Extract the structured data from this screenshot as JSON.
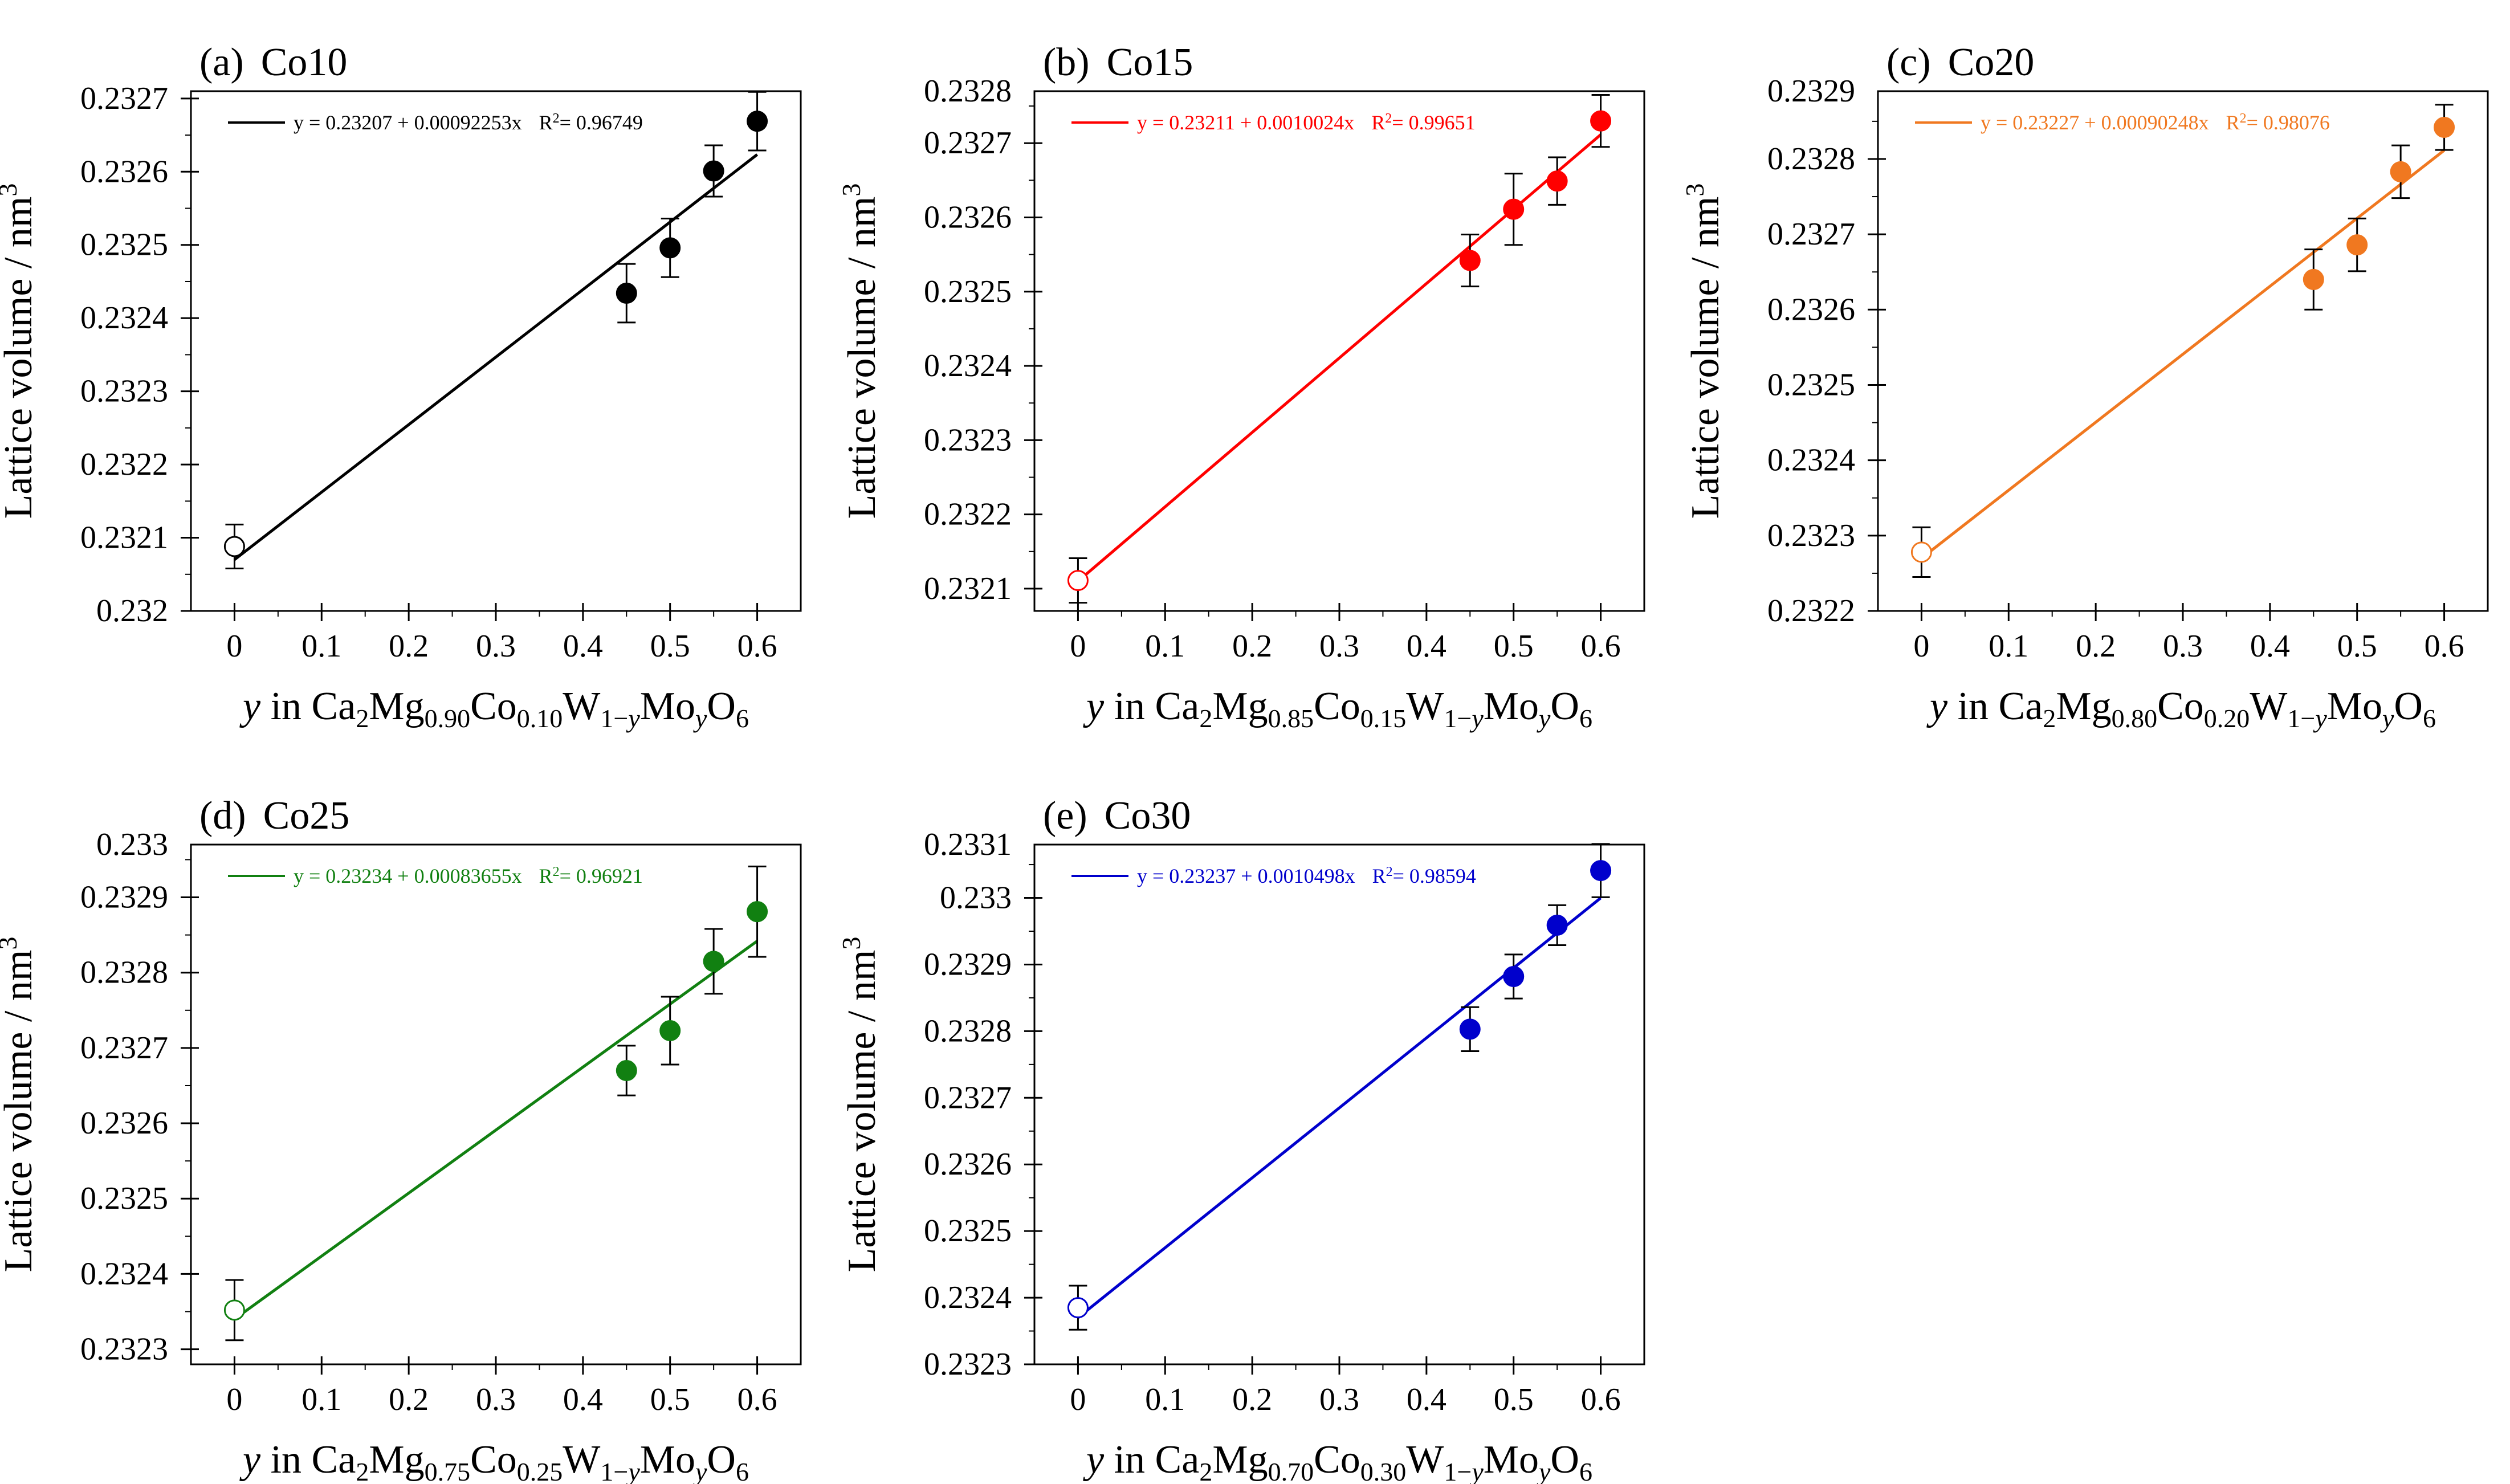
{
  "figure": {
    "ylabel": "Lattice volume / nm",
    "ylabel_superscript": "3",
    "xlabel_prefix": "y in Ca",
    "xtick_labels": [
      "0",
      "0.1",
      "0.2",
      "0.3",
      "0.4",
      "0.5",
      "0.6"
    ]
  },
  "chart_data": [
    {
      "type": "scatter",
      "panel_label": "(a)",
      "title": "Co10",
      "color": "#000000",
      "fit": {
        "intercept": 0.23207,
        "slope": 0.00092253,
        "equation": "y = 0.23207 + 0.00092253x",
        "r2_label": "R",
        "r2_value": "= 0.96749"
      },
      "x": [
        0,
        0.45,
        0.5,
        0.55,
        0.6
      ],
      "y": [
        0.232088,
        0.232434,
        0.232496,
        0.232601,
        0.232669
      ],
      "yerr": [
        3e-05,
        4e-05,
        4e-05,
        3.5e-05,
        4e-05
      ],
      "open_marker_index": 0,
      "xlim": [
        -0.05,
        0.65
      ],
      "ylim": [
        0.232,
        0.23271
      ],
      "ytick_values": [
        0.232,
        0.2321,
        0.2322,
        0.2323,
        0.2324,
        0.2325,
        0.2326,
        0.2327
      ],
      "ytick_labels": [
        "0.232",
        "0.2321",
        "0.2322",
        "0.2323",
        "0.2324",
        "0.2325",
        "0.2326",
        "0.2327"
      ],
      "xlabel": {
        "mg": "0.90",
        "co": "0.10"
      }
    },
    {
      "type": "scatter",
      "panel_label": "(b)",
      "title": "Co15",
      "color": "#ff0000",
      "fit": {
        "intercept": 0.23211,
        "slope": 0.0010024,
        "equation": "y = 0.23211 + 0.0010024x",
        "r2_label": "R",
        "r2_value": "= 0.99651"
      },
      "x": [
        0,
        0.45,
        0.5,
        0.55,
        0.6
      ],
      "y": [
        0.232111,
        0.232542,
        0.232611,
        0.232649,
        0.23273
      ],
      "yerr": [
        3e-05,
        3.5e-05,
        4.8e-05,
        3.2e-05,
        3.5e-05
      ],
      "open_marker_index": 0,
      "xlim": [
        -0.05,
        0.65
      ],
      "ylim": [
        0.23207,
        0.23277
      ],
      "ytick_values": [
        0.2321,
        0.2322,
        0.2323,
        0.2324,
        0.2325,
        0.2326,
        0.2327
      ],
      "ytick_labels": [
        "0.2321",
        "0.2322",
        "0.2323",
        "0.2324",
        "0.2325",
        "0.2326",
        "0.2327"
      ],
      "extra_ytick_label": {
        "value": 0.2328,
        "label": "0.2328"
      },
      "xlabel": {
        "mg": "0.85",
        "co": "0.15"
      }
    },
    {
      "type": "scatter",
      "panel_label": "(c)",
      "title": "Co20",
      "color": "#f07820",
      "fit": {
        "intercept": 0.23227,
        "slope": 0.00090248,
        "equation": "y = 0.23227 + 0.00090248x",
        "r2_label": "R",
        "r2_value": "= 0.98076"
      },
      "x": [
        0,
        0.45,
        0.5,
        0.55,
        0.6
      ],
      "y": [
        0.232278,
        0.23264,
        0.232686,
        0.232783,
        0.232842
      ],
      "yerr": [
        3.3e-05,
        4e-05,
        3.5e-05,
        3.5e-05,
        3e-05
      ],
      "open_marker_index": 0,
      "xlim": [
        -0.05,
        0.65
      ],
      "ylim": [
        0.2322,
        0.23289
      ],
      "ytick_values": [
        0.2322,
        0.2323,
        0.2324,
        0.2325,
        0.2326,
        0.2327,
        0.2328
      ],
      "ytick_labels": [
        "0.2322",
        "0.2323",
        "0.2324",
        "0.2325",
        "0.2326",
        "0.2327",
        "0.2328"
      ],
      "extra_ytick_label": {
        "value": 0.2329,
        "label": "0.2329"
      },
      "xlabel": {
        "mg": "0.80",
        "co": "0.20"
      }
    },
    {
      "type": "scatter",
      "panel_label": "(d)",
      "title": "Co25",
      "color": "#118011",
      "fit": {
        "intercept": 0.23234,
        "slope": 0.00083655,
        "equation": "y = 0.23234 + 0.00083655x",
        "r2_label": "R",
        "r2_value": "= 0.96921"
      },
      "x": [
        0,
        0.45,
        0.5,
        0.55,
        0.6
      ],
      "y": [
        0.232352,
        0.23267,
        0.232723,
        0.232815,
        0.232881
      ],
      "yerr": [
        4e-05,
        3.3e-05,
        4.5e-05,
        4.3e-05,
        6e-05
      ],
      "open_marker_index": 0,
      "xlim": [
        -0.05,
        0.65
      ],
      "ylim": [
        0.23228,
        0.23297
      ],
      "ytick_values": [
        0.2323,
        0.2324,
        0.2325,
        0.2326,
        0.2327,
        0.2328,
        0.2329
      ],
      "ytick_labels": [
        "0.2323",
        "0.2324",
        "0.2325",
        "0.2326",
        "0.2327",
        "0.2328",
        "0.2329"
      ],
      "extra_ytick_label": {
        "value": 0.233,
        "label": "0.233"
      },
      "xlabel": {
        "mg": "0.75",
        "co": "0.25"
      }
    },
    {
      "type": "scatter",
      "panel_label": "(e)",
      "title": "Co30",
      "color": "#0000cc",
      "fit": {
        "intercept": 0.23237,
        "slope": 0.0010498,
        "equation": "y = 0.23237 + 0.0010498x",
        "r2_label": "R",
        "r2_value": "= 0.98594"
      },
      "x": [
        0,
        0.45,
        0.5,
        0.55,
        0.6
      ],
      "y": [
        0.232385,
        0.232803,
        0.232882,
        0.232959,
        0.233041
      ],
      "yerr": [
        3.3e-05,
        3.3e-05,
        3.3e-05,
        3e-05,
        4e-05
      ],
      "open_marker_index": 0,
      "xlim": [
        -0.05,
        0.65
      ],
      "ylim": [
        0.2323,
        0.23308
      ],
      "ytick_values": [
        0.2323,
        0.2324,
        0.2325,
        0.2326,
        0.2327,
        0.2328,
        0.2329,
        0.233
      ],
      "ytick_labels": [
        "0.2323",
        "0.2324",
        "0.2325",
        "0.2326",
        "0.2327",
        "0.2328",
        "0.2329",
        "0.233"
      ],
      "extra_ytick_label": {
        "value": 0.2331,
        "label": "0.2331"
      },
      "xlabel": {
        "mg": "0.70",
        "co": "0.30"
      }
    }
  ]
}
